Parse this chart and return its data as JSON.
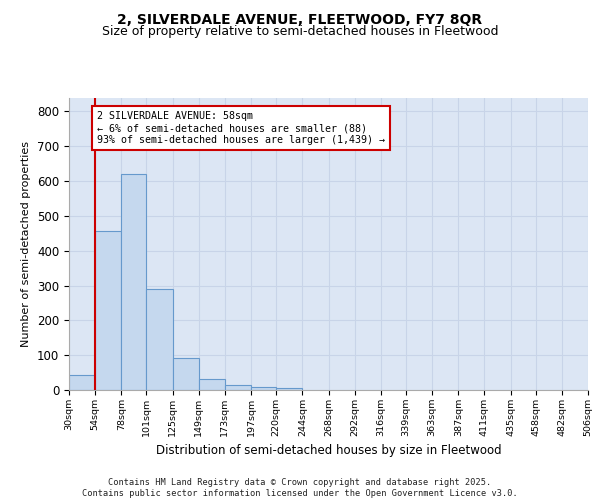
{
  "title": "2, SILVERDALE AVENUE, FLEETWOOD, FY7 8QR",
  "subtitle": "Size of property relative to semi-detached houses in Fleetwood",
  "xlabel": "Distribution of semi-detached houses by size in Fleetwood",
  "ylabel": "Number of semi-detached properties",
  "bar_edges": [
    30,
    54,
    78,
    101,
    125,
    149,
    173,
    197,
    220,
    244,
    268,
    292,
    316,
    339,
    363,
    387,
    411,
    435,
    458,
    482,
    506
  ],
  "bar_heights": [
    42,
    458,
    620,
    290,
    93,
    33,
    13,
    10,
    7,
    0,
    0,
    0,
    0,
    0,
    0,
    0,
    0,
    0,
    0,
    0
  ],
  "bar_color": "#c5d8ee",
  "bar_edge_color": "#6699cc",
  "property_line_x": 54,
  "annotation_text": "2 SILVERDALE AVENUE: 58sqm\n← 6% of semi-detached houses are smaller (88)\n93% of semi-detached houses are larger (1,439) →",
  "annotation_box_color": "#ffffff",
  "annotation_box_edge_color": "#cc0000",
  "redline_color": "#cc0000",
  "ylim": [
    0,
    840
  ],
  "yticks": [
    0,
    100,
    200,
    300,
    400,
    500,
    600,
    700,
    800
  ],
  "tick_labels": [
    "30sqm",
    "54sqm",
    "78sqm",
    "101sqm",
    "125sqm",
    "149sqm",
    "173sqm",
    "197sqm",
    "220sqm",
    "244sqm",
    "268sqm",
    "292sqm",
    "316sqm",
    "339sqm",
    "363sqm",
    "387sqm",
    "411sqm",
    "435sqm",
    "458sqm",
    "482sqm",
    "506sqm"
  ],
  "footer": "Contains HM Land Registry data © Crown copyright and database right 2025.\nContains public sector information licensed under the Open Government Licence v3.0.",
  "title_fontsize": 10,
  "subtitle_fontsize": 9,
  "grid_color": "#c8d4e8",
  "bg_color": "#dce6f4"
}
